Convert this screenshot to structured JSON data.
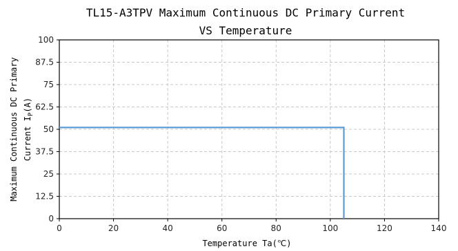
{
  "chart_data": {
    "type": "line",
    "title": [
      "TL15-A3TPV Maximum Continuous DC Primary Current",
      "VS Temperature"
    ],
    "xlabel": "Temperature Ta(℃)",
    "ylabel_line1": "Maximum Continuous DC Primary",
    "ylabel_line2_main": "Current I",
    "ylabel_line2_sub": "P",
    "ylabel_line2_end": "(A)",
    "xlim": [
      0,
      140
    ],
    "ylim": [
      0,
      100
    ],
    "x_ticks": [
      0,
      20,
      40,
      60,
      80,
      100,
      120,
      140
    ],
    "y_ticks": [
      0,
      12.5,
      25,
      37.5,
      50,
      62.5,
      75,
      87.5,
      100
    ],
    "grid": true,
    "series": [
      {
        "color": "#5b9bd5",
        "points": [
          [
            0,
            51
          ],
          [
            105,
            51
          ],
          [
            105,
            0
          ]
        ]
      }
    ]
  }
}
